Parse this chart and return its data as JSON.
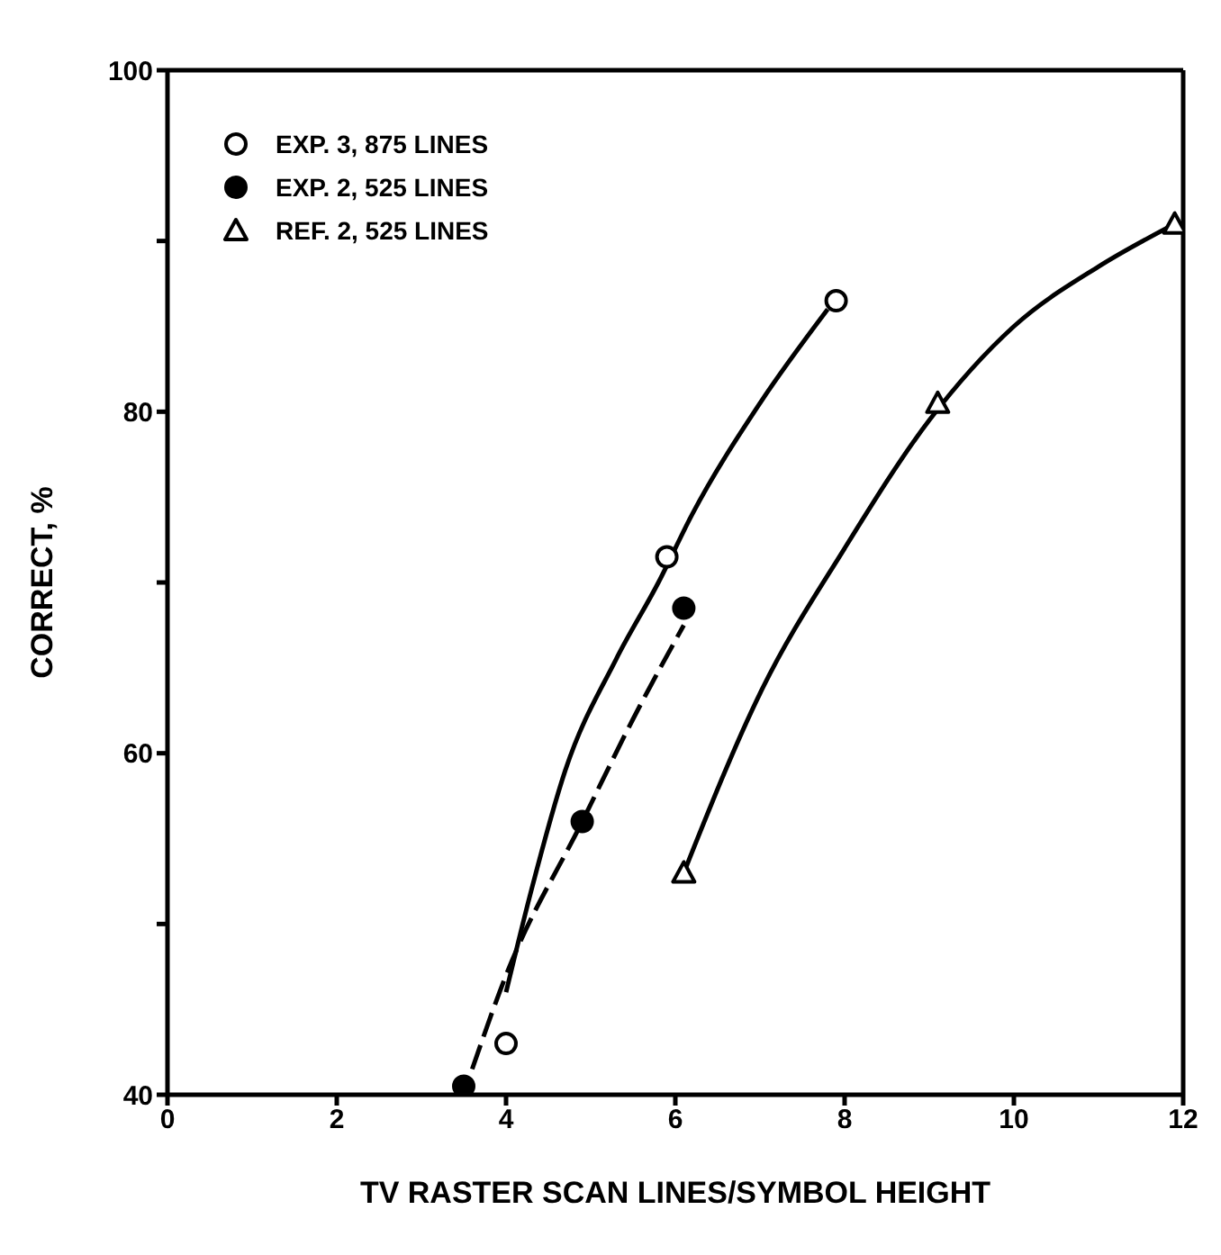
{
  "chart_data": {
    "type": "scatter",
    "xlabel": "TV  RASTER SCAN LINES/SYMBOL HEIGHT",
    "ylabel": "CORRECT, %",
    "xlim": [
      0,
      12
    ],
    "xticks": [
      0,
      2,
      4,
      6,
      8,
      10,
      12
    ],
    "ylim": [
      40,
      100
    ],
    "yticks": [
      40,
      {
        "value": 50,
        "label": null
      },
      60,
      {
        "value": 70,
        "label": null
      },
      80,
      {
        "value": 90,
        "label": null
      },
      100
    ],
    "legend": "top left",
    "series": [
      {
        "name": "EXP. 3,  875 LINES",
        "color": "#ffffff",
        "marker": "circle",
        "x": [
          4.0,
          5.9,
          7.9
        ],
        "values": [
          43,
          71.5,
          86.5
        ]
      },
      {
        "name": "EXP. 2,  525 LINES",
        "color": "#000000",
        "marker": "circle",
        "x": [
          3.5,
          4.9,
          6.1
        ],
        "values": [
          40.5,
          56,
          68.5
        ]
      },
      {
        "name": "REF. 2,  525 LINES",
        "color": "#ffffff",
        "marker": "triangle",
        "x": [
          6.1,
          9.1,
          11.9
        ],
        "values": [
          53,
          80.5,
          91
        ]
      },
      {
        "type": "line",
        "color": "#000000",
        "marker": "none",
        "line_style": "solid",
        "x": [
          4.0,
          4.3,
          4.7,
          5.3,
          5.8,
          6.2,
          7.0,
          7.8
        ],
        "values": [
          46,
          52,
          59,
          65.5,
          70,
          74,
          80.5,
          86
        ]
      },
      {
        "type": "line",
        "color": "#000000",
        "marker": "none",
        "line_style": "dashed",
        "x": [
          3.6,
          4.0,
          4.9,
          5.5,
          6.1
        ],
        "values": [
          41.5,
          47,
          56,
          62,
          67.5
        ]
      },
      {
        "type": "line",
        "color": "#000000",
        "marker": "none",
        "line_style": "solid",
        "x": [
          6.1,
          7.0,
          8.0,
          9.0,
          10.0,
          11.0,
          11.9
        ],
        "values": [
          53,
          63.5,
          72,
          79.5,
          85,
          88.5,
          91
        ]
      }
    ]
  }
}
